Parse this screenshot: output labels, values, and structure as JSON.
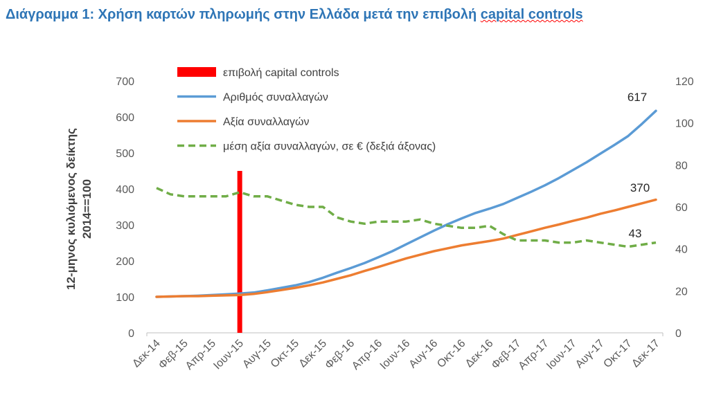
{
  "title": {
    "main": "Διάγραμμα 1: Χρήση καρτών πληρωμής στην Ελλάδα μετά την επιβολή ",
    "underlined": "capital controls"
  },
  "chart_data": {
    "type": "line",
    "title": "Διάγραμμα 1: Χρήση καρτών πληρωμής στην Ελλάδα μετά την επιβολή capital controls",
    "ylabel_line1": "12-μηνος κυλιόμενος δείκτης",
    "ylabel_line2": "2014==100",
    "ylim": [
      0,
      700
    ],
    "y_ticks": [
      0,
      100,
      200,
      300,
      400,
      500,
      600,
      700
    ],
    "y2lim": [
      0,
      120
    ],
    "y2_ticks": [
      0,
      20,
      40,
      60,
      80,
      100,
      120
    ],
    "x": [
      "Δεκ-14",
      "Ιαν-15",
      "Φεβ-15",
      "Μαρ-15",
      "Απρ-15",
      "Μαϊ-15",
      "Ιουν-15",
      "Ιουλ-15",
      "Αυγ-15",
      "Σεπ-15",
      "Οκτ-15",
      "Νοε-15",
      "Δεκ-15",
      "Ιαν-16",
      "Φεβ-16",
      "Μαρ-16",
      "Απρ-16",
      "Μαϊ-16",
      "Ιουν-16",
      "Ιουλ-16",
      "Αυγ-16",
      "Σεπ-16",
      "Οκτ-16",
      "Νοε-16",
      "Δεκ-16",
      "Ιαν-17",
      "Φεβ-17",
      "Μαρ-17",
      "Απρ-17",
      "Μαϊ-17",
      "Ιουν-17",
      "Ιουλ-17",
      "Αυγ-17",
      "Σεπ-17",
      "Οκτ-17",
      "Νοε-17",
      "Δεκ-17"
    ],
    "x_tick_labels": [
      "Δεκ-14",
      "Φεβ-15",
      "Απρ-15",
      "Ιουν-15",
      "Αυγ-15",
      "Οκτ-15",
      "Δεκ-15",
      "Φεβ-16",
      "Απρ-16",
      "Ιουν-16",
      "Αυγ-16",
      "Οκτ-16",
      "Δεκ-16",
      "Φεβ-17",
      "Απρ-17",
      "Ιουν-17",
      "Αυγ-17",
      "Οκτ-17",
      "Δεκ-17"
    ],
    "marker": {
      "name": "επιβολή capital controls",
      "x": "Ιουν-15",
      "color": "#ff0000",
      "y_top": 450
    },
    "series": [
      {
        "name": "Αριθμός συναλλαγών",
        "axis": "left",
        "color": "#5b9bd5",
        "style": "solid",
        "values": [
          100,
          101,
          102,
          103,
          105,
          107,
          109,
          112,
          118,
          125,
          132,
          141,
          153,
          167,
          180,
          194,
          210,
          227,
          246,
          265,
          284,
          302,
          318,
          333,
          345,
          358,
          375,
          392,
          410,
          430,
          452,
          474,
          498,
          522,
          547,
          581,
          617
        ]
      },
      {
        "name": "Αξία συναλλαγών",
        "axis": "left",
        "color": "#ed7d31",
        "style": "solid",
        "values": [
          100,
          101,
          102,
          102,
          103,
          104,
          105,
          108,
          113,
          119,
          125,
          132,
          140,
          150,
          160,
          172,
          183,
          195,
          207,
          217,
          227,
          235,
          243,
          249,
          255,
          262,
          272,
          282,
          292,
          301,
          311,
          320,
          331,
          340,
          350,
          360,
          370
        ]
      },
      {
        "name": "μέση αξία συναλλαγών, σε € (δεξιά άξονας)",
        "axis": "right",
        "color": "#70ad47",
        "style": "dashed",
        "values": [
          69,
          66,
          65,
          65,
          65,
          65,
          67,
          65,
          65,
          63,
          61,
          60,
          60,
          55,
          53,
          52,
          53,
          53,
          53,
          54,
          52,
          51,
          50,
          50,
          51,
          47,
          44,
          44,
          44,
          43,
          43,
          44,
          43,
          42,
          41,
          42,
          43
        ]
      }
    ],
    "end_labels": [
      "617",
      "370",
      "43"
    ],
    "legend_position": "top-left"
  }
}
